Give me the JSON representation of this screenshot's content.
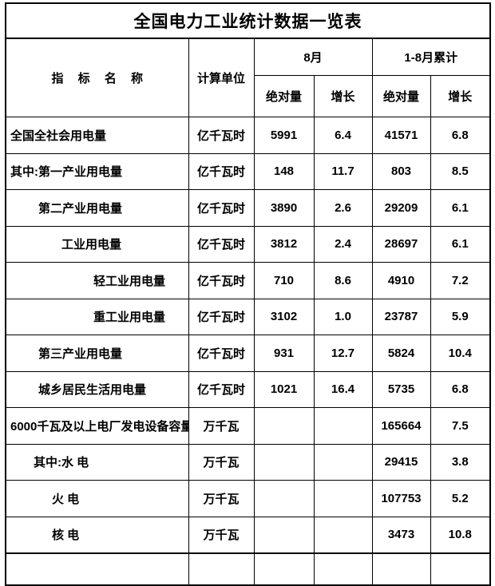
{
  "title": "全国电力工业统计数据一览表",
  "header": {
    "indicator": "指 标 名 称",
    "unit": "计算单位",
    "group_august": "8月",
    "group_cumulative": "1-8月累计",
    "absolute": "绝对量",
    "growth": "增长"
  },
  "rows": [
    {
      "name": "全国全社会用电量",
      "indent": 5,
      "unit": "亿千瓦时",
      "aug_abs": "5991",
      "aug_growth": "6.4",
      "cum_abs": "41571",
      "cum_growth": "6.8"
    },
    {
      "name": "其中:第一产业用电量",
      "indent": 5,
      "unit": "亿千瓦时",
      "aug_abs": "148",
      "aug_growth": "11.7",
      "cum_abs": "803",
      "cum_growth": "8.5"
    },
    {
      "name": "第二产业用电量",
      "indent": 40,
      "unit": "亿千瓦时",
      "aug_abs": "3890",
      "aug_growth": "2.6",
      "cum_abs": "29209",
      "cum_growth": "6.1"
    },
    {
      "name": "工业用电量",
      "indent": 69,
      "unit": "亿千瓦时",
      "aug_abs": "3812",
      "aug_growth": "2.4",
      "cum_abs": "28697",
      "cum_growth": "6.1"
    },
    {
      "name": "轻工业用电量",
      "indent": 109,
      "unit": "亿千瓦时",
      "aug_abs": "710",
      "aug_growth": "8.6",
      "cum_abs": "4910",
      "cum_growth": "7.2"
    },
    {
      "name": "重工业用电量",
      "indent": 109,
      "unit": "亿千瓦时",
      "aug_abs": "3102",
      "aug_growth": "1.0",
      "cum_abs": "23787",
      "cum_growth": "5.9"
    },
    {
      "name": "第三产业用电量",
      "indent": 40,
      "unit": "亿千瓦时",
      "aug_abs": "931",
      "aug_growth": "12.7",
      "cum_abs": "5824",
      "cum_growth": "10.4"
    },
    {
      "name": "城乡居民生活用电量",
      "indent": 40,
      "unit": "亿千瓦时",
      "aug_abs": "1021",
      "aug_growth": "16.4",
      "cum_abs": "5735",
      "cum_growth": "6.8"
    },
    {
      "name": "6000千瓦及以上电厂发电设备容量",
      "indent": 5,
      "unit": "万千瓦",
      "aug_abs": "",
      "aug_growth": "",
      "cum_abs": "165664",
      "cum_growth": "7.5"
    },
    {
      "name": "其中:水 电",
      "indent": 34,
      "unit": "万千瓦",
      "aug_abs": "",
      "aug_growth": "",
      "cum_abs": "29415",
      "cum_growth": "3.8"
    },
    {
      "name": "火 电",
      "indent": 57,
      "unit": "万千瓦",
      "aug_abs": "",
      "aug_growth": "",
      "cum_abs": "107753",
      "cum_growth": "5.2"
    },
    {
      "name": "核 电",
      "indent": 57,
      "unit": "万千瓦",
      "aug_abs": "",
      "aug_growth": "",
      "cum_abs": "3473",
      "cum_growth": "10.8"
    }
  ]
}
